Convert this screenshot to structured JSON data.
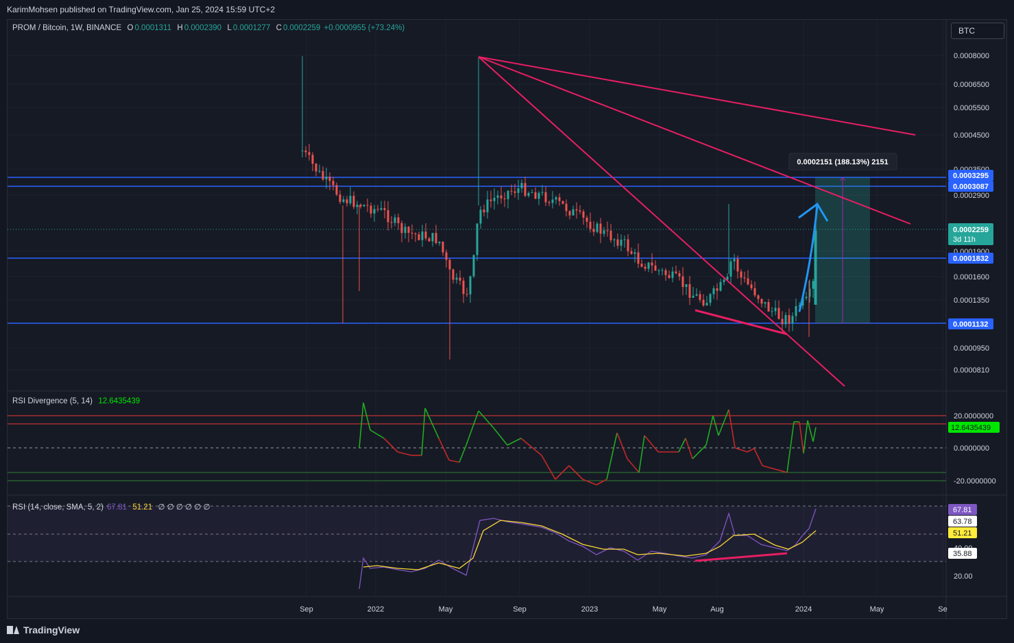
{
  "header": {
    "published": "KarimMohsen published on TradingView.com, Jan 25, 2024 15:59 UTC+2"
  },
  "legend": {
    "symbol": "PROM / Bitcoin, 1W, BINANCE",
    "o_label": "O",
    "o_value": "0.0001311",
    "h_label": "H",
    "h_value": "0.0002390",
    "l_label": "L",
    "l_value": "0.0001277",
    "c_label": "C",
    "c_value": "0.0002259",
    "change": "+0.0000955 (+73.24%)"
  },
  "currency_button": "BTC",
  "price_axis": {
    "ticks": [
      "0.0008000",
      "0.0006500",
      "0.0005500",
      "0.0004500",
      "0.0003500",
      "0.0002900",
      "0.0001900",
      "0.0001600",
      "0.0001350",
      "0.0000950",
      "0.0000810"
    ],
    "badges": [
      {
        "label": "0.0003295",
        "color": "#2962ff"
      },
      {
        "label": "0.0003087",
        "color": "#2962ff"
      },
      {
        "label": "0.0001832",
        "color": "#2962ff"
      },
      {
        "label": "0.0001132",
        "color": "#2962ff"
      }
    ],
    "current_price": "0.0002259",
    "countdown": "3d 11h"
  },
  "measure_tooltip": "0.0002151 (188.13%) 2151",
  "time_axis": [
    "Sep",
    "2022",
    "May",
    "Sep",
    "2023",
    "May",
    "Aug",
    "2024",
    "May",
    "Se"
  ],
  "rsi_divergence": {
    "title": "RSI Divergence (5, 14)",
    "value": "12.6435439",
    "ticks": [
      "20.0000000",
      "0.0000000",
      "-20.0000000"
    ],
    "value_badge": "12.6435439"
  },
  "rsi": {
    "title": "RSI (14, close, SMA, 5, 2)",
    "rsi_value": "67.81",
    "sma_value": "51.21",
    "empty_values": "∅ ∅ ∅ ∅ ∅ ∅",
    "ticks": [
      "40.00",
      "20.00"
    ],
    "badges": [
      {
        "label": "67.81",
        "bg": "#7e57c2",
        "fg": "#ffffff"
      },
      {
        "label": "63.78",
        "bg": "#ffffff",
        "fg": "#131722"
      },
      {
        "label": "51.21",
        "bg": "#ffeb3b",
        "fg": "#131722"
      },
      {
        "label": "35.88",
        "bg": "#ffffff",
        "fg": "#131722"
      }
    ]
  },
  "footer": {
    "brand": "TradingView"
  },
  "colors": {
    "up": "#26a69a",
    "down": "#ef5350",
    "trendline": "#e91e63",
    "level": "#2962ff",
    "arrow": "#2196f3",
    "rsi": "#7e57c2",
    "rsi_sma": "#fdd835",
    "div_up": "#22ab22",
    "div_down": "#c62828"
  }
}
